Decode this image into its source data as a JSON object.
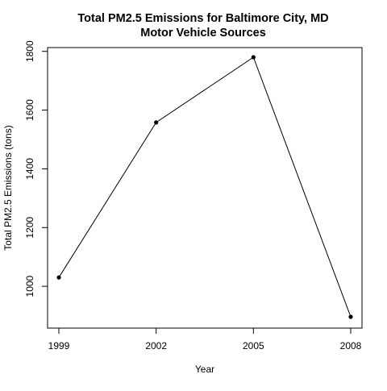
{
  "chart_data": {
    "type": "line",
    "title": "Total PM2.5 Emissions for Baltimore City, MD",
    "subtitle": "Motor Vehicle Sources",
    "xlabel": "Year",
    "ylabel": "Total PM2.5 Emissions (tons)",
    "x": [
      1999,
      2002,
      2005,
      2008
    ],
    "series": [
      {
        "values": [
          1030,
          1558,
          1780,
          896
        ]
      }
    ],
    "x_ticks": [
      "1999",
      "2002",
      "2005",
      "2008"
    ],
    "y_ticks": [
      "1000",
      "1200",
      "1400",
      "1600",
      "1800"
    ],
    "xlim": [
      1999,
      2008
    ],
    "ylim": [
      896,
      1780
    ],
    "grid": false,
    "markers": "filled-circle",
    "line_color": "#000000"
  }
}
